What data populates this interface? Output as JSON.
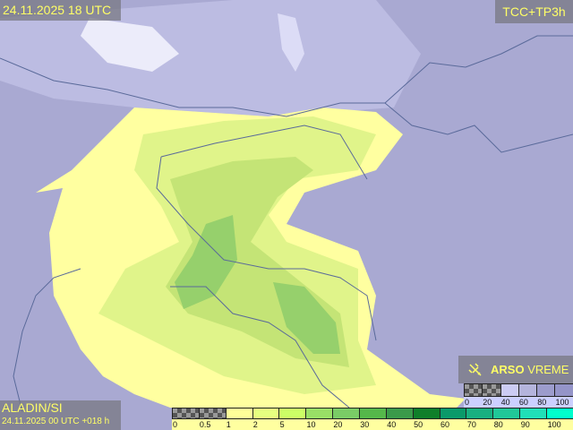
{
  "header": {
    "valid_time": "24.11.2025 18 UTC",
    "product": "TCC+TP3h"
  },
  "footer": {
    "model": "ALADIN/SI",
    "run": "24.11.2025 00 UTC +018 h"
  },
  "logo": {
    "brand": "ARSO",
    "name": "VREME",
    "icon": "satellite-icon"
  },
  "precip_legend": {
    "labels": [
      "0",
      "0.5",
      "1",
      "2",
      "5",
      "10",
      "20",
      "30",
      "40",
      "50",
      "60",
      "70",
      "80",
      "90",
      "100"
    ],
    "colors": [
      "checker",
      "checker",
      "#ffff99",
      "#e6ff80",
      "#ccff66",
      "#99e066",
      "#7acc66",
      "#55b84a",
      "#3a9a4a",
      "#0f7f2a",
      "#0a9a6a",
      "#18b080",
      "#20c898",
      "#20e0b8",
      "#00ffcc"
    ]
  },
  "cloud_legend": {
    "labels": [
      "0",
      "20",
      "40",
      "60",
      "80",
      "100"
    ],
    "colors": [
      "checker",
      "checker",
      "#ccccf4",
      "#b4b4dc",
      "#9c9ccc",
      "#9494c8"
    ]
  },
  "map_colors": {
    "background": "#a9a9d2",
    "precip_light": "#ffffa0",
    "precip_mid": "#e0f48a",
    "precip_green": "#b8e070",
    "precip_dark": "#90d070",
    "clouds_high": "#d8d8f4",
    "borders": "#5a6a9a"
  }
}
